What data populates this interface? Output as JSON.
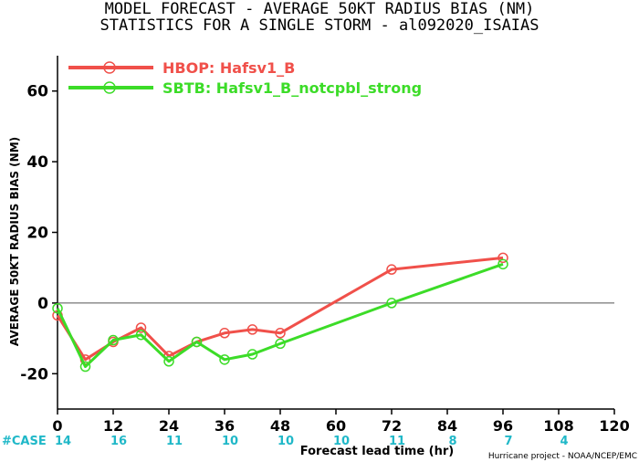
{
  "title_line1": "MODEL FORECAST - AVERAGE 50KT RADIUS BIAS (NM)",
  "title_line2": "STATISTICS FOR A SINGLE STORM - al092020_ISAIAS",
  "credit": "Hurricane project - NOAA/NCEP/EMC",
  "case_label": "#CASE",
  "colors": {
    "hbop": "#f0504a",
    "sbtb": "#3cdc28",
    "case_counts": "#20b8c8",
    "zero_line": "#555555",
    "axis": "#000000"
  },
  "chart_data": {
    "type": "line",
    "title": "MODEL FORECAST - AVERAGE 50KT RADIUS BIAS (NM)",
    "subtitle": "STATISTICS FOR A SINGLE STORM - al092020_ISAIAS",
    "xlabel": "Forecast lead time (hr)",
    "ylabel": "AVERAGE 50KT RADIUS BIAS (NM)",
    "xlim": [
      0,
      120
    ],
    "ylim": [
      -30,
      70
    ],
    "x_ticks": [
      0,
      12,
      24,
      36,
      48,
      60,
      72,
      84,
      96,
      108,
      120
    ],
    "y_ticks": [
      -20,
      0,
      20,
      40,
      60
    ],
    "grid": false,
    "legend_position": "top-left",
    "reference_line_y": 0,
    "series": [
      {
        "name": "HBOP: Hafsv1_B",
        "color": "#f0504a",
        "x": [
          0,
          6,
          12,
          18,
          24,
          30,
          36,
          42,
          48,
          72,
          96
        ],
        "y": [
          -3.5,
          -16,
          -11,
          -7,
          -15,
          -11,
          -8.5,
          -7.5,
          -8.5,
          9.5,
          12.8
        ]
      },
      {
        "name": "SBTB: Hafsv1_B_notcpbl_strong",
        "color": "#3cdc28",
        "x": [
          0,
          6,
          12,
          18,
          24,
          30,
          36,
          42,
          48,
          72,
          96
        ],
        "y": [
          -1.5,
          -18,
          -10.5,
          -9,
          -16.5,
          -11,
          -16,
          -14.5,
          -11.5,
          0,
          11
        ]
      }
    ],
    "case_counts": {
      "x": [
        0,
        12,
        24,
        36,
        48,
        60,
        72,
        84,
        96,
        108
      ],
      "values": [
        "14",
        "16",
        "11",
        "10",
        "10",
        "10",
        "11",
        "8",
        "7",
        "4"
      ]
    }
  }
}
